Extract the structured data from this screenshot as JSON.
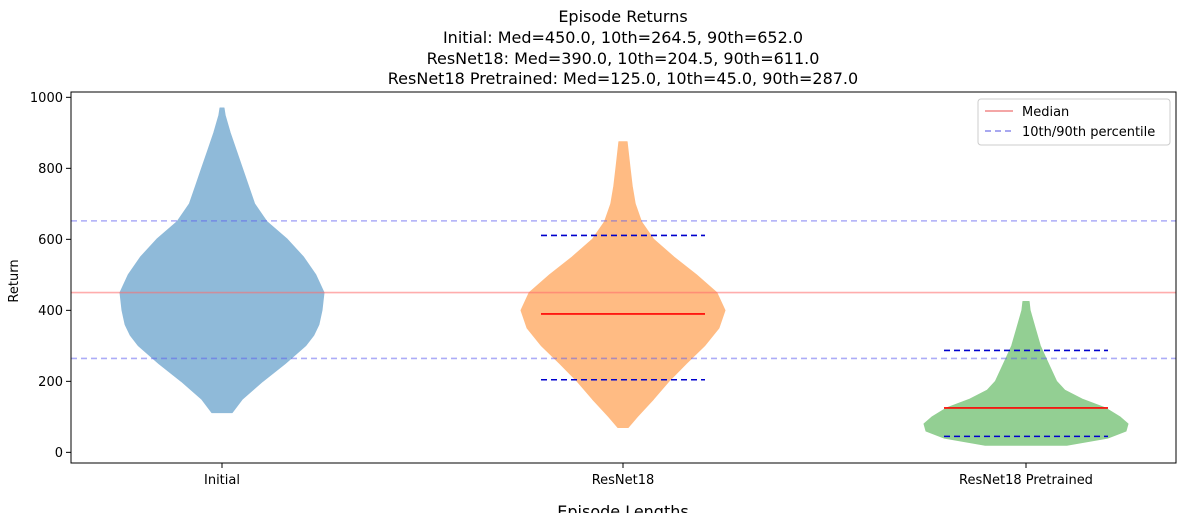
{
  "chart_data": {
    "type": "violin",
    "title": "Episode Returns",
    "subtitle_lines": [
      "Initial: Med=450.0, 10th=264.5, 90th=652.0",
      "ResNet18: Med=390.0, 10th=204.5, 90th=611.0",
      "ResNet18 Pretrained: Med=125.0, 10th=45.0, 90th=287.0"
    ],
    "xlabel": "",
    "ylabel": "Return",
    "ylim": [
      -30,
      1015
    ],
    "yticks": [
      0,
      200,
      400,
      600,
      800,
      1000
    ],
    "categories": [
      "Initial",
      "ResNet18",
      "ResNet18 Pretrained"
    ],
    "series": [
      {
        "category": "Initial",
        "color": "#8fbad9",
        "min": 112,
        "max": 970,
        "median": 450.0,
        "p10": 264.5,
        "p90": 652.0,
        "show_stat_lines": false,
        "profile": [
          [
            112,
            0.1
          ],
          [
            150,
            0.2
          ],
          [
            200,
            0.4
          ],
          [
            250,
            0.62
          ],
          [
            300,
            0.82
          ],
          [
            330,
            0.9
          ],
          [
            360,
            0.95
          ],
          [
            400,
            0.98
          ],
          [
            450,
            1.0
          ],
          [
            500,
            0.92
          ],
          [
            550,
            0.8
          ],
          [
            600,
            0.64
          ],
          [
            650,
            0.44
          ],
          [
            700,
            0.32
          ],
          [
            750,
            0.26
          ],
          [
            800,
            0.2
          ],
          [
            850,
            0.14
          ],
          [
            900,
            0.08
          ],
          [
            950,
            0.03
          ],
          [
            970,
            0.02
          ]
        ]
      },
      {
        "category": "ResNet18",
        "color": "#ffbb83",
        "min": 70,
        "max": 875,
        "median": 390.0,
        "p10": 204.5,
        "p90": 611.0,
        "show_stat_lines": true,
        "profile": [
          [
            70,
            0.05
          ],
          [
            100,
            0.14
          ],
          [
            150,
            0.3
          ],
          [
            200,
            0.45
          ],
          [
            250,
            0.62
          ],
          [
            300,
            0.8
          ],
          [
            350,
            0.94
          ],
          [
            400,
            1.0
          ],
          [
            450,
            0.92
          ],
          [
            500,
            0.72
          ],
          [
            550,
            0.5
          ],
          [
            600,
            0.3
          ],
          [
            650,
            0.18
          ],
          [
            700,
            0.12
          ],
          [
            750,
            0.09
          ],
          [
            800,
            0.07
          ],
          [
            850,
            0.05
          ],
          [
            875,
            0.04
          ]
        ]
      },
      {
        "category": "ResNet18 Pretrained",
        "color": "#93cf93",
        "min": 20,
        "max": 425,
        "median": 125.0,
        "p10": 45.0,
        "p90": 287.0,
        "show_stat_lines": true,
        "profile": [
          [
            20,
            0.4
          ],
          [
            40,
            0.8
          ],
          [
            60,
            0.98
          ],
          [
            80,
            1.0
          ],
          [
            100,
            0.92
          ],
          [
            125,
            0.78
          ],
          [
            150,
            0.55
          ],
          [
            175,
            0.38
          ],
          [
            200,
            0.3
          ],
          [
            250,
            0.22
          ],
          [
            300,
            0.14
          ],
          [
            350,
            0.09
          ],
          [
            400,
            0.04
          ],
          [
            425,
            0.03
          ]
        ]
      }
    ],
    "reference_lines": {
      "median": 450.0,
      "p10": 264.5,
      "p90": 652.0
    },
    "legend": {
      "position": "top-right",
      "entries": [
        {
          "label": "Median",
          "style": "solid",
          "color": "#f4a6a6"
        },
        {
          "label": "10th/90th percentile",
          "style": "dashed",
          "color": "#a8a8f0"
        }
      ]
    },
    "grid": false,
    "next_chart_title": "Episode Lengths"
  }
}
